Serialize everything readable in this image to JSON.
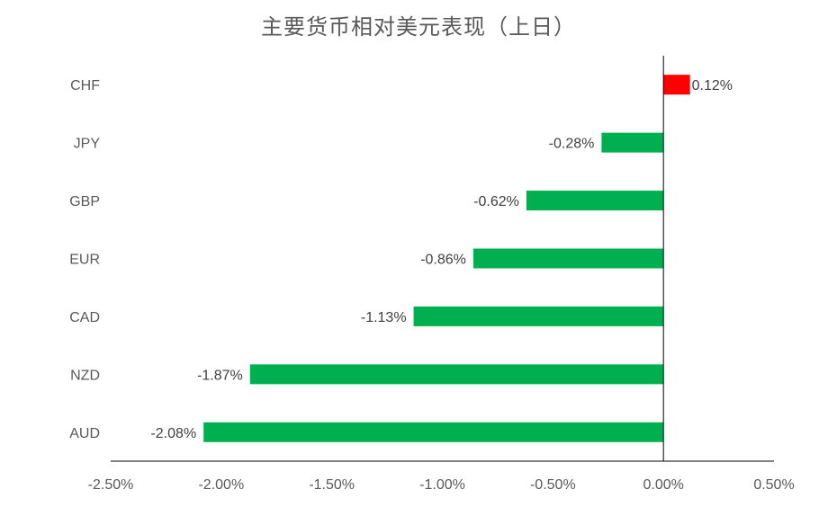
{
  "chart_data": {
    "type": "bar",
    "orientation": "horizontal",
    "title": "主要货币相对美元表现（上日）",
    "xlabel": "",
    "ylabel": "",
    "categories": [
      "CHF",
      "JPY",
      "GBP",
      "EUR",
      "CAD",
      "NZD",
      "AUD"
    ],
    "values": [
      0.12,
      -0.28,
      -0.62,
      -0.86,
      -1.13,
      -1.87,
      -2.08
    ],
    "data_labels": [
      "0.12%",
      "-0.28%",
      "-0.62%",
      "-0.86%",
      "-1.13%",
      "-1.87%",
      "-2.08%"
    ],
    "xlim": [
      -2.5,
      0.5
    ],
    "x_ticks": [
      -2.5,
      -2.0,
      -1.5,
      -1.0,
      -0.5,
      0.0,
      0.5
    ],
    "x_tick_labels": [
      "-2.50%",
      "-2.00%",
      "-1.50%",
      "-1.00%",
      "-0.50%",
      "0.00%",
      "0.50%"
    ],
    "grid": false,
    "legend": "none",
    "colors": {
      "positive": "#ff0000",
      "negative": "#00b050"
    }
  }
}
